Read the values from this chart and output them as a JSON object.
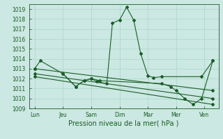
{
  "bg_color": "#cce8e2",
  "grid_color": "#aad4cc",
  "line_color": "#1a5c28",
  "xlabel": "Pression niveau de la mer( hPa )",
  "xlabel_fontsize": 7,
  "tick_fontsize": 5.5,
  "ylim": [
    1009,
    1019.5
  ],
  "yticks": [
    1009,
    1010,
    1011,
    1012,
    1013,
    1014,
    1015,
    1016,
    1017,
    1018,
    1019
  ],
  "xtick_labels": [
    "Lun",
    "Jeu",
    "Sam",
    "Dim",
    "Mar",
    "Mer",
    "Ven"
  ],
  "xtick_positions": [
    0,
    1,
    2,
    3,
    4,
    5,
    6
  ],
  "xlim": [
    -0.2,
    6.5
  ],
  "series": [
    {
      "x": [
        0.0,
        0.2,
        1.0,
        1.45,
        1.75,
        2.0,
        2.2,
        2.55,
        2.75,
        3.0,
        3.25,
        3.5,
        3.75,
        4.0,
        4.2,
        4.5,
        5.9,
        6.3
      ],
      "y": [
        1013.0,
        1013.8,
        1012.5,
        1011.2,
        1011.8,
        1012.0,
        1011.7,
        1011.5,
        1017.6,
        1017.9,
        1019.2,
        1017.9,
        1014.5,
        1012.3,
        1012.1,
        1012.2,
        1012.2,
        1013.8
      ]
    },
    {
      "x": [
        0.0,
        6.3
      ],
      "y": [
        1013.0,
        1010.8
      ]
    },
    {
      "x": [
        0.0,
        6.3
      ],
      "y": [
        1012.5,
        1010.0
      ]
    },
    {
      "x": [
        0.0,
        6.3
      ],
      "y": [
        1012.2,
        1009.4
      ]
    },
    {
      "x": [
        1.0,
        1.45,
        1.75,
        2.0,
        2.3,
        4.5,
        4.8,
        5.0,
        5.3,
        5.6,
        5.9,
        6.3
      ],
      "y": [
        1012.5,
        1011.2,
        1011.8,
        1012.0,
        1011.8,
        1011.5,
        1011.2,
        1010.8,
        1010.0,
        1009.4,
        1010.0,
        1013.8
      ]
    }
  ]
}
